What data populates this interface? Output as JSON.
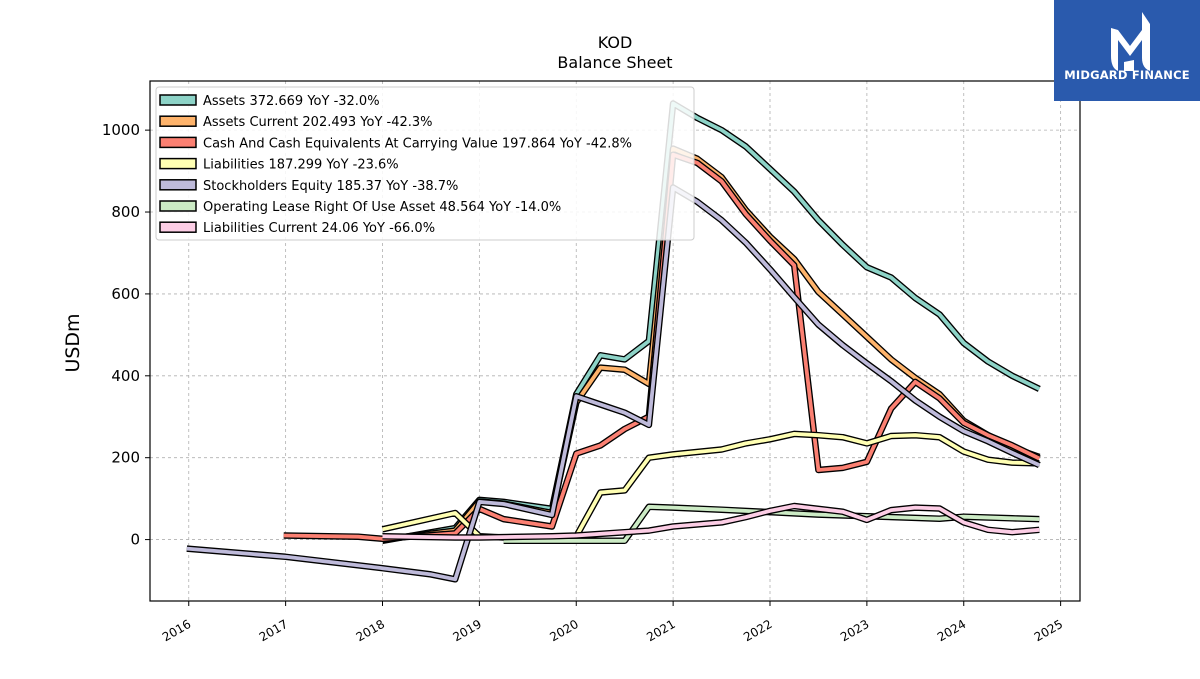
{
  "brand": {
    "name": "MIDGARD FINANCE",
    "background": "#2a5aad"
  },
  "chart_data": {
    "type": "line",
    "title": "KOD",
    "subtitle": "Balance  Sheet",
    "xlabel": "",
    "ylabel": "USDm",
    "xlim": [
      2015.6,
      2025.2
    ],
    "ylim": [
      -150,
      1120
    ],
    "xticks": [
      "2016",
      "2017",
      "2018",
      "2019",
      "2020",
      "2021",
      "2022",
      "2023",
      "2024",
      "2025"
    ],
    "yticks": [
      0,
      200,
      400,
      600,
      800,
      1000
    ],
    "grid": true,
    "legend_position": "upper-left",
    "series": [
      {
        "name": "Assets  372.669 YoY -32.0%",
        "color": "#8dd3c7",
        "points": [
          [
            2018.0,
            -3
          ],
          [
            2018.75,
            28
          ],
          [
            2019.0,
            97
          ],
          [
            2019.25,
            92
          ],
          [
            2019.75,
            75
          ],
          [
            2020.0,
            355
          ],
          [
            2020.25,
            450
          ],
          [
            2020.5,
            440
          ],
          [
            2020.75,
            485
          ],
          [
            2021.0,
            1065
          ],
          [
            2021.25,
            1030
          ],
          [
            2021.5,
            1000
          ],
          [
            2021.75,
            960
          ],
          [
            2022.0,
            905
          ],
          [
            2022.25,
            850
          ],
          [
            2022.5,
            780
          ],
          [
            2022.75,
            720
          ],
          [
            2023.0,
            665
          ],
          [
            2023.25,
            640
          ],
          [
            2023.5,
            590
          ],
          [
            2023.75,
            550
          ],
          [
            2024.0,
            480
          ],
          [
            2024.25,
            435
          ],
          [
            2024.5,
            400
          ],
          [
            2024.78,
            368
          ]
        ]
      },
      {
        "name": "Assets Current  202.493 YoY -42.3%",
        "color": "#feb36b",
        "points": [
          [
            2018.0,
            0
          ],
          [
            2018.75,
            22
          ],
          [
            2019.0,
            93
          ],
          [
            2019.25,
            88
          ],
          [
            2019.75,
            65
          ],
          [
            2020.0,
            335
          ],
          [
            2020.25,
            420
          ],
          [
            2020.5,
            415
          ],
          [
            2020.75,
            380
          ],
          [
            2021.0,
            955
          ],
          [
            2021.25,
            930
          ],
          [
            2021.5,
            885
          ],
          [
            2021.75,
            805
          ],
          [
            2022.0,
            740
          ],
          [
            2022.25,
            685
          ],
          [
            2022.5,
            605
          ],
          [
            2022.75,
            550
          ],
          [
            2023.0,
            495
          ],
          [
            2023.25,
            440
          ],
          [
            2023.5,
            395
          ],
          [
            2023.75,
            355
          ],
          [
            2024.0,
            290
          ],
          [
            2024.25,
            255
          ],
          [
            2024.5,
            225
          ],
          [
            2024.78,
            202
          ]
        ]
      },
      {
        "name": "Cash And Cash Equivalents At Carrying Value  197.864 YoY -42.8%",
        "color": "#fb8072",
        "points": [
          [
            2016.98,
            10
          ],
          [
            2017.75,
            7
          ],
          [
            2018.0,
            2
          ],
          [
            2018.75,
            15
          ],
          [
            2019.0,
            75
          ],
          [
            2019.25,
            50
          ],
          [
            2019.75,
            32
          ],
          [
            2020.0,
            210
          ],
          [
            2020.25,
            230
          ],
          [
            2020.5,
            270
          ],
          [
            2020.75,
            300
          ],
          [
            2021.0,
            940
          ],
          [
            2021.25,
            920
          ],
          [
            2021.5,
            875
          ],
          [
            2021.75,
            795
          ],
          [
            2022.0,
            730
          ],
          [
            2022.25,
            670
          ],
          [
            2022.5,
            170
          ],
          [
            2022.75,
            175
          ],
          [
            2023.0,
            190
          ],
          [
            2023.25,
            320
          ],
          [
            2023.5,
            385
          ],
          [
            2023.75,
            345
          ],
          [
            2024.0,
            285
          ],
          [
            2024.25,
            255
          ],
          [
            2024.5,
            230
          ],
          [
            2024.78,
            198
          ]
        ]
      },
      {
        "name": "Liabilities  187.299 YoY -23.6%",
        "color": "#ffffb3",
        "points": [
          [
            2018.0,
            25
          ],
          [
            2018.75,
            65
          ],
          [
            2019.0,
            8
          ],
          [
            2019.25,
            5
          ],
          [
            2019.75,
            3
          ],
          [
            2020.0,
            8
          ],
          [
            2020.25,
            115
          ],
          [
            2020.5,
            120
          ],
          [
            2020.75,
            200
          ],
          [
            2021.0,
            208
          ],
          [
            2021.5,
            220
          ],
          [
            2021.75,
            235
          ],
          [
            2022.0,
            245
          ],
          [
            2022.25,
            258
          ],
          [
            2022.5,
            255
          ],
          [
            2022.75,
            250
          ],
          [
            2023.0,
            235
          ],
          [
            2023.25,
            253
          ],
          [
            2023.5,
            255
          ],
          [
            2023.75,
            250
          ],
          [
            2024.0,
            215
          ],
          [
            2024.25,
            195
          ],
          [
            2024.5,
            188
          ],
          [
            2024.78,
            186
          ]
        ]
      },
      {
        "name": "Stockholders Equity  185.37 YoY -38.7%",
        "color": "#bebada",
        "points": [
          [
            2015.98,
            -22
          ],
          [
            2017.0,
            -42
          ],
          [
            2018.0,
            -70
          ],
          [
            2018.5,
            -85
          ],
          [
            2018.75,
            -97
          ],
          [
            2019.0,
            92
          ],
          [
            2019.25,
            87
          ],
          [
            2019.75,
            60
          ],
          [
            2020.0,
            350
          ],
          [
            2020.25,
            330
          ],
          [
            2020.5,
            310
          ],
          [
            2020.75,
            280
          ],
          [
            2021.0,
            860
          ],
          [
            2021.25,
            825
          ],
          [
            2021.5,
            780
          ],
          [
            2021.75,
            725
          ],
          [
            2022.0,
            660
          ],
          [
            2022.25,
            592
          ],
          [
            2022.5,
            525
          ],
          [
            2022.75,
            475
          ],
          [
            2023.0,
            430
          ],
          [
            2023.25,
            387
          ],
          [
            2023.5,
            340
          ],
          [
            2023.75,
            300
          ],
          [
            2024.0,
            265
          ],
          [
            2024.25,
            240
          ],
          [
            2024.5,
            212
          ],
          [
            2024.78,
            182
          ]
        ]
      },
      {
        "name": "Operating Lease Right Of Use Asset  48.564 YoY -14.0%",
        "color": "#ccebc5",
        "points": [
          [
            2019.25,
            -3
          ],
          [
            2019.75,
            -3
          ],
          [
            2020.25,
            -3
          ],
          [
            2020.5,
            -3
          ],
          [
            2020.75,
            80
          ],
          [
            2021.0,
            78
          ],
          [
            2021.5,
            73
          ],
          [
            2022.0,
            67
          ],
          [
            2022.5,
            61
          ],
          [
            2023.0,
            57
          ],
          [
            2023.5,
            53
          ],
          [
            2023.75,
            51
          ],
          [
            2024.0,
            56
          ],
          [
            2024.5,
            52
          ],
          [
            2024.78,
            50
          ]
        ]
      },
      {
        "name": "Liabilities Current  24.06 YoY -66.0%",
        "color": "#fccde5",
        "points": [
          [
            2018.0,
            8
          ],
          [
            2018.75,
            5
          ],
          [
            2019.0,
            5
          ],
          [
            2019.75,
            8
          ],
          [
            2020.0,
            10
          ],
          [
            2020.5,
            18
          ],
          [
            2020.75,
            22
          ],
          [
            2021.0,
            32
          ],
          [
            2021.5,
            42
          ],
          [
            2021.75,
            55
          ],
          [
            2022.0,
            70
          ],
          [
            2022.25,
            82
          ],
          [
            2022.5,
            75
          ],
          [
            2022.75,
            68
          ],
          [
            2023.0,
            48
          ],
          [
            2023.25,
            72
          ],
          [
            2023.5,
            78
          ],
          [
            2023.75,
            76
          ],
          [
            2024.0,
            42
          ],
          [
            2024.25,
            24
          ],
          [
            2024.5,
            18
          ],
          [
            2024.78,
            24
          ]
        ]
      }
    ]
  }
}
